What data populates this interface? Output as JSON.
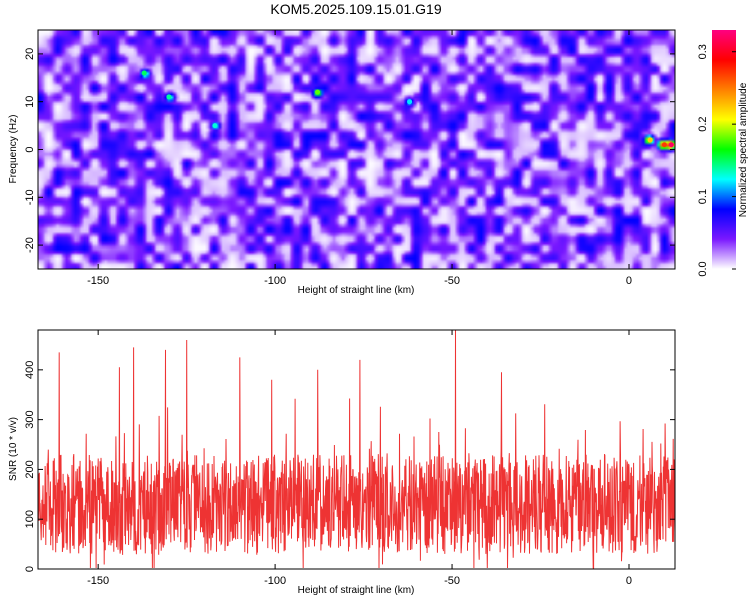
{
  "title": "KOM5.2025.109.15.01.G19",
  "chart_data": [
    {
      "type": "heatmap",
      "xlabel": "Height of straight line (km)",
      "ylabel": "Frequency (Hz)",
      "xlim": [
        -167,
        13
      ],
      "ylim": [
        -25,
        25
      ],
      "x_ticks": [
        -150,
        -100,
        -50,
        0
      ],
      "y_ticks": [
        -20,
        -10,
        0,
        10,
        20
      ],
      "colorbar": {
        "label": "Normalized spectral amplitude",
        "range": [
          0.0,
          0.33
        ],
        "ticks": [
          0.0,
          0.1,
          0.2,
          0.3
        ],
        "colormap": [
          "#ffffff",
          "#7a18ff",
          "#0000ff",
          "#00ffff",
          "#00ff00",
          "#ffff00",
          "#ff8000",
          "#ff0000",
          "#ff0080"
        ]
      },
      "background_amplitude": [
        0.02,
        0.06
      ],
      "peaks": [
        {
          "x": 6,
          "y": 2,
          "value": 0.22
        },
        {
          "x": 10,
          "y": 1,
          "value": 0.27
        },
        {
          "x": 12,
          "y": 1,
          "value": 0.32
        },
        {
          "x": -88,
          "y": 12,
          "value": 0.18
        },
        {
          "x": -137,
          "y": 16,
          "value": 0.15
        },
        {
          "x": -130,
          "y": 11,
          "value": 0.14
        },
        {
          "x": -117,
          "y": 5,
          "value": 0.13
        },
        {
          "x": -62,
          "y": 10,
          "value": 0.12
        }
      ]
    },
    {
      "type": "line",
      "xlabel": "Height of straight line (km)",
      "ylabel": "SNR (10 * v/v)",
      "xlim": [
        -167,
        13
      ],
      "ylim": [
        0,
        480
      ],
      "x_ticks": [
        -150,
        -100,
        -50,
        0
      ],
      "y_ticks": [
        0,
        100,
        200,
        300,
        400
      ],
      "color": "#ee3333",
      "series_stats": {
        "n_points": 1800,
        "baseline": 130,
        "typical_low": 60,
        "typical_high": 250
      },
      "notable_points": [
        {
          "x": -49,
          "y": 480
        },
        {
          "x": -125,
          "y": 460
        },
        {
          "x": -131,
          "y": 440
        },
        {
          "x": -140,
          "y": 445
        },
        {
          "x": -110,
          "y": 425
        },
        {
          "x": -76,
          "y": 420
        },
        {
          "x": -88,
          "y": 400
        },
        {
          "x": -161,
          "y": 435
        },
        {
          "x": -144,
          "y": 405
        },
        {
          "x": -101,
          "y": 380
        },
        {
          "x": -36,
          "y": 395
        },
        {
          "x": -10,
          "y": 0
        }
      ]
    }
  ]
}
